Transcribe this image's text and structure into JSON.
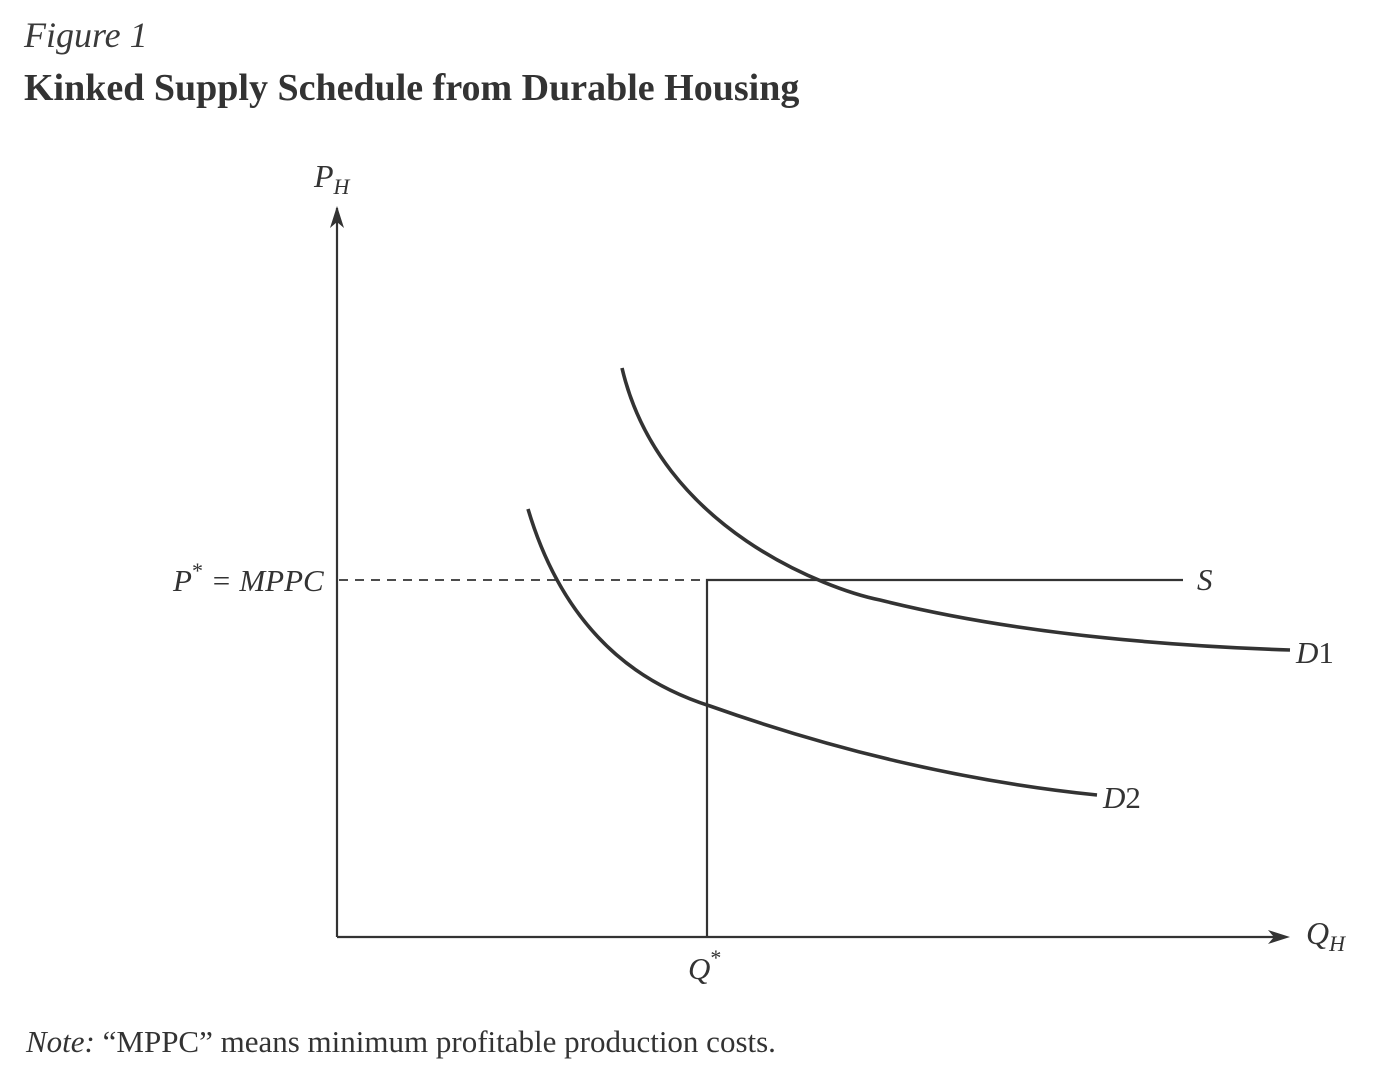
{
  "figure": {
    "label": "Figure 1",
    "title": "Kinked Supply Schedule from Durable Housing"
  },
  "axes": {
    "y_label": "P",
    "y_label_sub": "H",
    "x_label": "Q",
    "x_label_sub": "H"
  },
  "price_marker": {
    "p_letter": "P",
    "p_star": "*",
    "eq_text": " = MPPC"
  },
  "quantity_marker": {
    "q_letter": "Q",
    "q_star": "*"
  },
  "curves": {
    "supply_label": "S",
    "demand1_letter": "D",
    "demand1_num": "1",
    "demand2_letter": "D",
    "demand2_num": "2"
  },
  "note": {
    "label": "Note:",
    "text": " “MPPC” means minimum profitable production costs."
  },
  "colors": {
    "ink": "#333333"
  }
}
